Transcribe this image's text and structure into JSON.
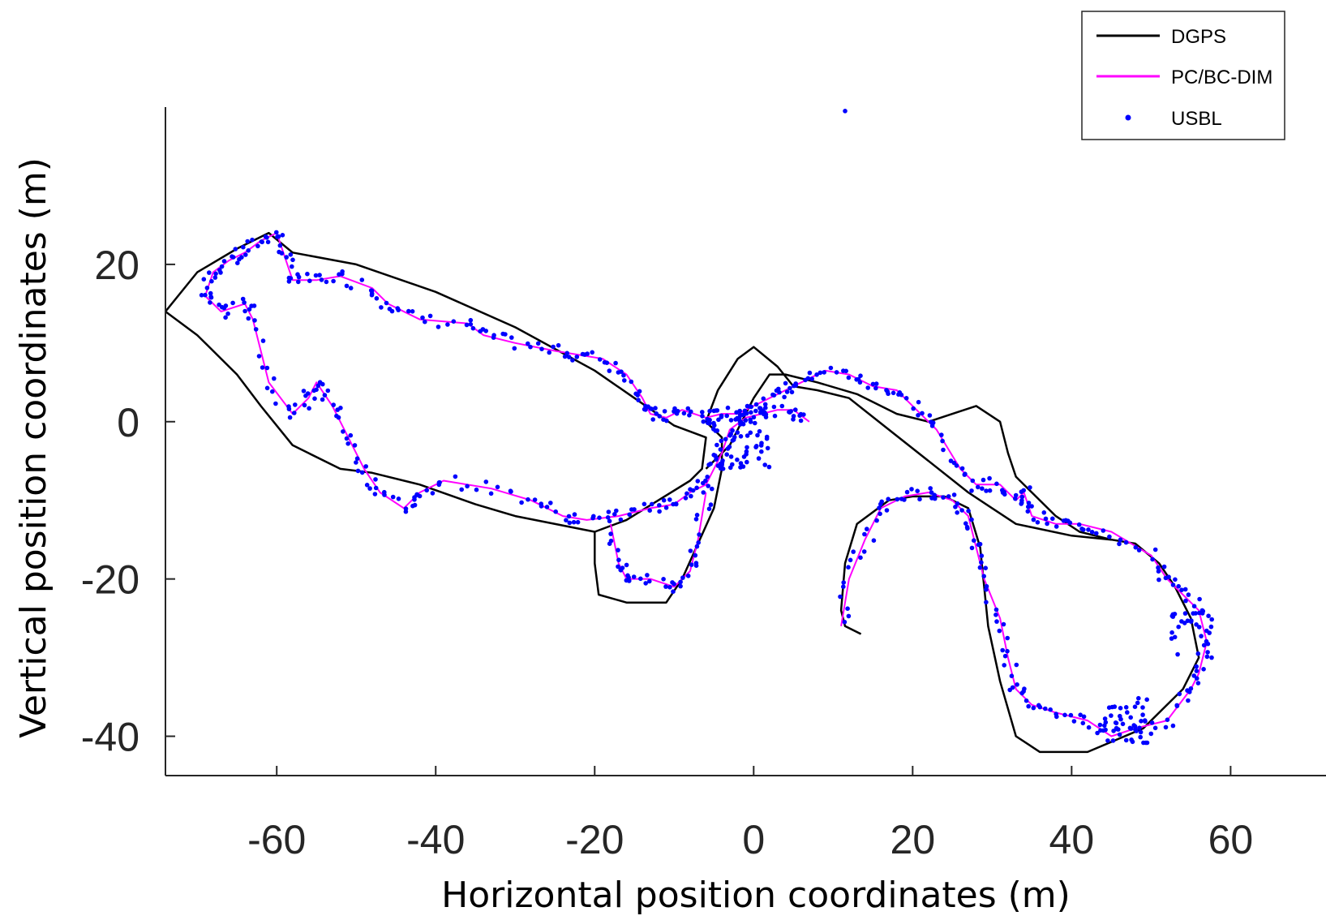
{
  "chart_data": {
    "type": "line",
    "title": "",
    "xlabel": "Horizontal position coordinates (m)",
    "ylabel": "Vertical position coordinates (m)",
    "xlim": [
      -74,
      72
    ],
    "ylim": [
      -45,
      40
    ],
    "xticks": [
      -60,
      -40,
      -20,
      0,
      20,
      40,
      60
    ],
    "yticks": [
      20,
      0,
      -20,
      -40
    ],
    "grid": false,
    "legend": "top-right",
    "series": [
      {
        "name": "DGPS",
        "color": "#000000",
        "style": "line",
        "points": [
          [
            -74,
            14
          ],
          [
            -70,
            19
          ],
          [
            -65,
            22
          ],
          [
            -61,
            24
          ],
          [
            -58,
            21.5
          ],
          [
            -50,
            20
          ],
          [
            -40,
            16.5
          ],
          [
            -30,
            12
          ],
          [
            -20,
            6.5
          ],
          [
            -15,
            3
          ],
          [
            -10,
            -0.5
          ],
          [
            -6,
            -2
          ],
          [
            -6.5,
            -6
          ],
          [
            -8,
            -7.5
          ],
          [
            -12,
            -10
          ],
          [
            -16,
            -12.5
          ],
          [
            -20,
            -14
          ],
          [
            -30,
            -12
          ],
          [
            -35,
            -10.5
          ],
          [
            -42,
            -8
          ],
          [
            -48,
            -6.5
          ],
          [
            -52,
            -6
          ],
          [
            -58,
            -3
          ],
          [
            -62,
            2
          ],
          [
            -65,
            6
          ],
          [
            -70,
            11
          ],
          [
            -74,
            14
          ]
        ]
      },
      {
        "name": "",
        "color": "#000000",
        "style": "line",
        "points": [
          [
            -20,
            -14
          ],
          [
            -20,
            -18
          ],
          [
            -19.5,
            -22
          ],
          [
            -16,
            -23
          ],
          [
            -11,
            -23
          ],
          [
            -9,
            -20
          ],
          [
            -5,
            -11
          ],
          [
            -4,
            -6
          ],
          [
            -4,
            -2
          ],
          [
            -6,
            0
          ],
          [
            -4.5,
            4
          ],
          [
            -2,
            8
          ],
          [
            0,
            9.5
          ],
          [
            3,
            7
          ],
          [
            5,
            4.5
          ],
          [
            8,
            4
          ],
          [
            12,
            3
          ],
          [
            17,
            -1
          ],
          [
            22,
            -5
          ],
          [
            27,
            -9
          ],
          [
            30,
            -11
          ],
          [
            33,
            -13
          ],
          [
            40,
            -14.5
          ],
          [
            45,
            -15
          ],
          [
            48,
            -15.5
          ],
          [
            51,
            -18
          ],
          [
            53,
            -21
          ],
          [
            55,
            -25
          ],
          [
            56,
            -30
          ],
          [
            54,
            -34
          ],
          [
            49,
            -39
          ],
          [
            42,
            -42
          ],
          [
            36,
            -42
          ],
          [
            33,
            -40
          ],
          [
            31,
            -33
          ],
          [
            29.5,
            -26
          ],
          [
            28.5,
            -16
          ],
          [
            27,
            -11
          ],
          [
            24,
            -9.5
          ],
          [
            20,
            -9.5
          ],
          [
            17,
            -10
          ],
          [
            13,
            -13
          ],
          [
            11.5,
            -18
          ],
          [
            11,
            -24
          ],
          [
            11.5,
            -26
          ],
          [
            13.5,
            -27
          ]
        ]
      },
      {
        "name": "",
        "color": "#000000",
        "style": "line",
        "points": [
          [
            -6,
            -6
          ],
          [
            -3,
            -3
          ],
          [
            0,
            3
          ],
          [
            2,
            6
          ],
          [
            4,
            6
          ],
          [
            8,
            5
          ],
          [
            13,
            3.5
          ],
          [
            18,
            1
          ],
          [
            22,
            0
          ],
          [
            28,
            2
          ],
          [
            31,
            0
          ],
          [
            32,
            -4
          ],
          [
            33,
            -7
          ],
          [
            35,
            -9
          ],
          [
            38,
            -12
          ],
          [
            41,
            -14
          ],
          [
            45,
            -15
          ]
        ]
      },
      {
        "name": "PC/BC-DIM",
        "color": "#ff00ff",
        "style": "line",
        "points": [
          [
            -69,
            16
          ],
          [
            -68,
            19
          ],
          [
            -66,
            20.5
          ],
          [
            -64,
            21.5
          ],
          [
            -62,
            23
          ],
          [
            -60,
            24
          ],
          [
            -59,
            21
          ],
          [
            -58,
            18
          ],
          [
            -55,
            18
          ],
          [
            -52,
            18.5
          ],
          [
            -48,
            17
          ],
          [
            -46,
            15
          ],
          [
            -42,
            13
          ],
          [
            -36,
            12.5
          ],
          [
            -34,
            11
          ],
          [
            -30,
            10
          ],
          [
            -25,
            9
          ],
          [
            -22,
            8.5
          ],
          [
            -19,
            8
          ],
          [
            -16,
            6
          ],
          [
            -14,
            3
          ],
          [
            -13,
            1
          ],
          [
            -11,
            0.5
          ],
          [
            -9,
            1.5
          ],
          [
            -6,
            0.5
          ],
          [
            -4,
            1
          ],
          [
            -2,
            1
          ],
          [
            0,
            2
          ],
          [
            2,
            3
          ],
          [
            4,
            4
          ],
          [
            6,
            5
          ],
          [
            9,
            6.5
          ],
          [
            12,
            6
          ],
          [
            15,
            4.5
          ],
          [
            18,
            4
          ],
          [
            20,
            2
          ],
          [
            23,
            -1
          ],
          [
            26,
            -6
          ],
          [
            28,
            -8
          ],
          [
            31,
            -8
          ],
          [
            33,
            -10
          ],
          [
            34,
            -9
          ],
          [
            35,
            -12
          ],
          [
            38,
            -13
          ],
          [
            41,
            -13
          ],
          [
            45,
            -14
          ],
          [
            50,
            -17
          ],
          [
            52,
            -20
          ],
          [
            54,
            -22
          ],
          [
            56,
            -24
          ],
          [
            57,
            -28
          ],
          [
            56,
            -32
          ],
          [
            55,
            -34
          ],
          [
            52,
            -38
          ],
          [
            48,
            -39
          ],
          [
            45,
            -40
          ],
          [
            42,
            -38
          ],
          [
            38,
            -37
          ],
          [
            35,
            -36
          ],
          [
            33,
            -34
          ],
          [
            32,
            -30
          ],
          [
            31,
            -25
          ],
          [
            29,
            -20
          ],
          [
            28,
            -16
          ],
          [
            27,
            -12
          ],
          [
            25,
            -10
          ],
          [
            22,
            -9
          ],
          [
            19,
            -9.5
          ],
          [
            16,
            -11
          ],
          [
            14,
            -15
          ],
          [
            12,
            -20
          ],
          [
            11,
            -26
          ]
        ]
      },
      {
        "name": "",
        "color": "#ff00ff",
        "style": "line",
        "points": [
          [
            -69,
            16
          ],
          [
            -67,
            14
          ],
          [
            -64,
            15
          ],
          [
            -63,
            13
          ],
          [
            -61,
            5
          ],
          [
            -58,
            1
          ],
          [
            -56,
            3
          ],
          [
            -55,
            5
          ],
          [
            -53,
            2
          ],
          [
            -51,
            -2
          ],
          [
            -49,
            -6
          ],
          [
            -47,
            -9
          ],
          [
            -44,
            -11
          ],
          [
            -42,
            -9
          ],
          [
            -39,
            -7.5
          ],
          [
            -33,
            -8.5
          ],
          [
            -28,
            -10
          ],
          [
            -24,
            -12
          ],
          [
            -21,
            -12.5
          ],
          [
            -17,
            -12
          ],
          [
            -13,
            -11
          ],
          [
            -10,
            -10.5
          ],
          [
            -8,
            -9
          ],
          [
            -6,
            -8
          ],
          [
            -5,
            -6
          ],
          [
            -4,
            -4
          ],
          [
            -3,
            -1
          ],
          [
            -1,
            0.5
          ],
          [
            1,
            1
          ],
          [
            3,
            1.5
          ],
          [
            5,
            1.5
          ],
          [
            7,
            0
          ]
        ]
      },
      {
        "name": "",
        "color": "#ff00ff",
        "style": "line",
        "points": [
          [
            -18,
            -13
          ],
          [
            -17,
            -18
          ],
          [
            -16,
            -20
          ],
          [
            -13,
            -20
          ],
          [
            -10,
            -21
          ],
          [
            -8,
            -19
          ],
          [
            -7,
            -15
          ],
          [
            -6,
            -9
          ]
        ]
      }
    ],
    "usbl": {
      "name": "USBL",
      "color": "#0000ff",
      "style": "points"
    }
  },
  "legend": {
    "entries": [
      {
        "label": "DGPS",
        "color": "#000000",
        "marker": "line"
      },
      {
        "label": "PC/BC-DIM",
        "color": "#ff00ff",
        "marker": "line"
      },
      {
        "label": "USBL",
        "color": "#0000ff",
        "marker": "dot"
      }
    ]
  }
}
